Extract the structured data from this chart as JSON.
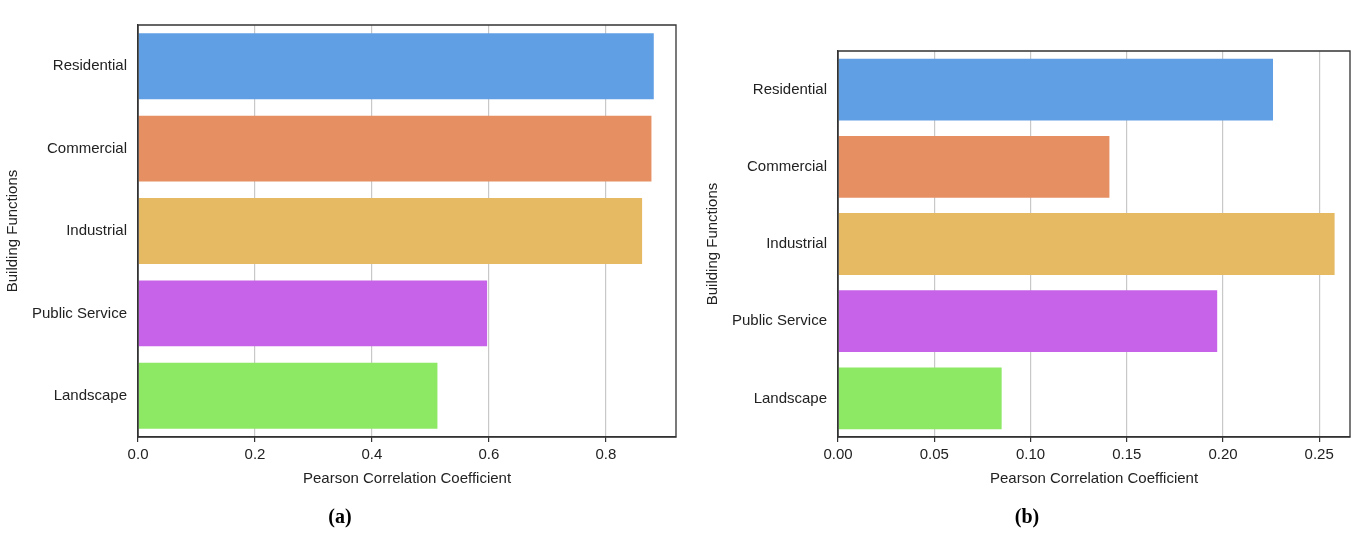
{
  "chart_data": [
    {
      "type": "bar",
      "orientation": "horizontal",
      "categories": [
        "Residential",
        "Commercial",
        "Industrial",
        "Public Service",
        "Landscape"
      ],
      "values": [
        0.882,
        0.878,
        0.862,
        0.597,
        0.512
      ],
      "colors": [
        "#619fe5",
        "#e68f63",
        "#e5ba63",
        "#c763e8",
        "#8de863"
      ],
      "xlabel": "Pearson Correlation Coefficient",
      "ylabel": "Building Functions",
      "xlim": [
        0,
        0.92
      ],
      "xticks": [
        {
          "value": 0,
          "label": "0.0"
        },
        {
          "value": 0.2,
          "label": "0.2"
        },
        {
          "value": 0.4,
          "label": "0.4"
        },
        {
          "value": 0.6,
          "label": "0.6"
        },
        {
          "value": 0.8,
          "label": "0.8"
        }
      ],
      "grid": "x",
      "annotations": [
        "(a)"
      ]
    },
    {
      "type": "bar",
      "orientation": "horizontal",
      "categories": [
        "Residential",
        "Commercial",
        "Industrial",
        "Public Service",
        "Landscape"
      ],
      "values": [
        0.226,
        0.141,
        0.258,
        0.197,
        0.085
      ],
      "colors": [
        "#619fe5",
        "#e68f63",
        "#e5ba63",
        "#c763e8",
        "#8de863"
      ],
      "xlabel": "Pearson Correlation Coefficient",
      "ylabel": "Building Functions",
      "xlim": [
        0,
        0.266
      ],
      "xticks": [
        {
          "value": 0,
          "label": "0.00"
        },
        {
          "value": 0.05,
          "label": "0.05"
        },
        {
          "value": 0.1,
          "label": "0.10"
        },
        {
          "value": 0.15,
          "label": "0.15"
        },
        {
          "value": 0.2,
          "label": "0.20"
        },
        {
          "value": 0.25,
          "label": "0.25"
        }
      ],
      "grid": "x",
      "annotations": [
        "(b)"
      ]
    }
  ]
}
